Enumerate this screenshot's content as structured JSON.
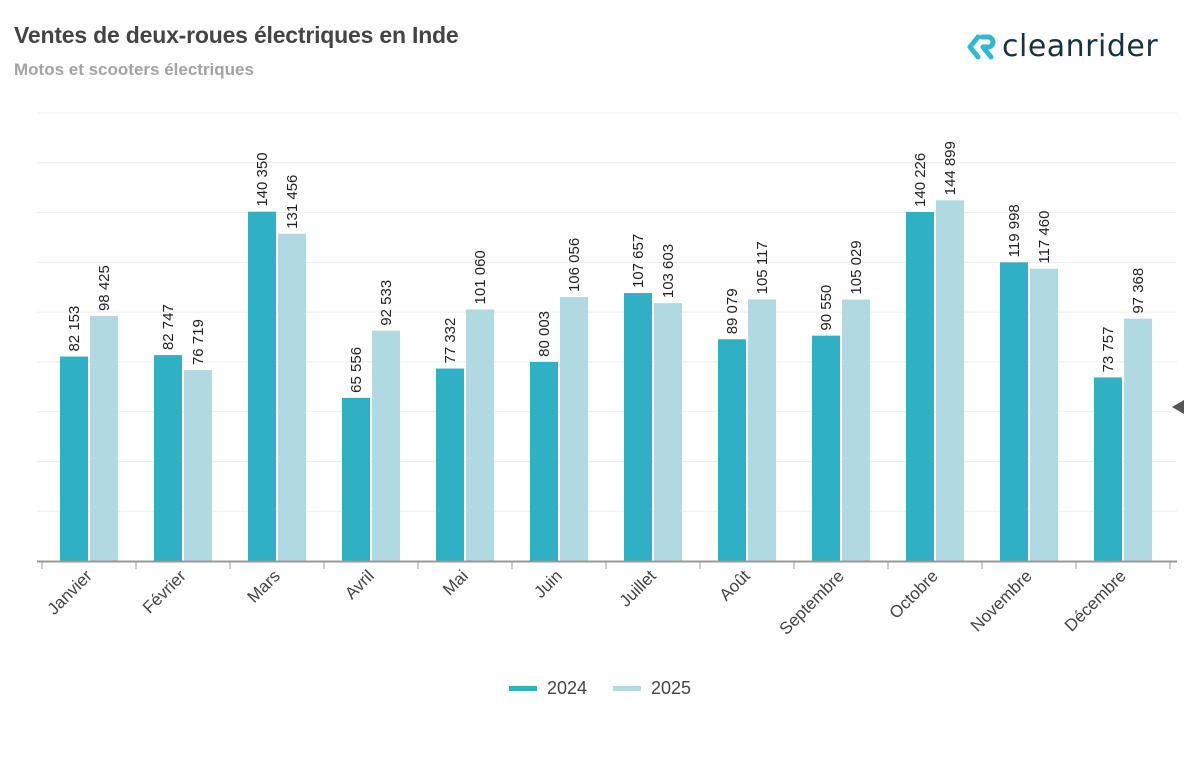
{
  "header": {
    "title": "Ventes de deux-roues électriques en Inde",
    "subtitle": "Motos et scooters électriques"
  },
  "logo": {
    "text": "cleanrider",
    "icon": "cleanrider-logo-icon",
    "icon_color": "#2fb8d0"
  },
  "colors": {
    "2024": "#2fb0c5",
    "2025": "#b1d9e1",
    "grid": "#eeeeee",
    "axis": "#999999",
    "label": "#222222",
    "tick_label": "#444444"
  },
  "chart_data": {
    "type": "bar",
    "title": "Ventes de deux-roues électriques en Inde",
    "subtitle": "Motos et scooters électriques",
    "xlabel": "",
    "ylabel": "",
    "ylim": [
      0,
      180000
    ],
    "grid": true,
    "y_axis_labels_visible": false,
    "legend_position": "bottom-center",
    "categories": [
      "Janvier",
      "Février",
      "Mars",
      "Avril",
      "Mai",
      "Juin",
      "Juillet",
      "Août",
      "Septembre",
      "Octobre",
      "Novembre",
      "Décembre"
    ],
    "series": [
      {
        "name": "2024",
        "values": [
          82153,
          82747,
          140350,
          65556,
          77332,
          80003,
          107657,
          89079,
          90550,
          140226,
          119998,
          73757
        ],
        "labels": [
          "82 153",
          "82 747",
          "140 350",
          "65 556",
          "77 332",
          "80 003",
          "107 657",
          "89 079",
          "90 550",
          "140 226",
          "119 998",
          "73 757"
        ]
      },
      {
        "name": "2025",
        "values": [
          98425,
          76719,
          131456,
          92533,
          101060,
          106056,
          103603,
          105117,
          105029,
          144899,
          117460,
          97368
        ],
        "labels": [
          "98 425",
          "76 719",
          "131 456",
          "92 533",
          "101 060",
          "106 056",
          "103 603",
          "105 117",
          "105 029",
          "144 899",
          "117 460",
          "97 368"
        ]
      }
    ]
  },
  "legend": {
    "items": [
      {
        "label": "2024"
      },
      {
        "label": "2025"
      }
    ]
  },
  "controls": {
    "nav_arrow": "caret-left-icon"
  }
}
